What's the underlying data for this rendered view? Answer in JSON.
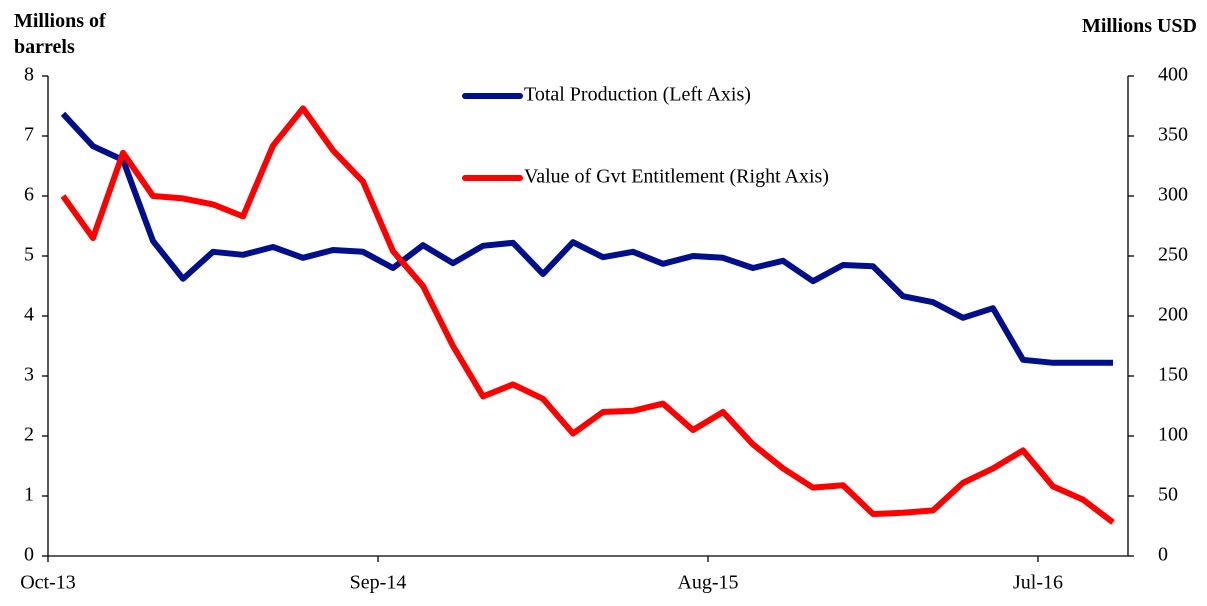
{
  "chart_data": {
    "type": "line",
    "y_label": "Millions of barrels",
    "y2_label": "Millions USD",
    "categories": [
      "Oct-13",
      null,
      null,
      null,
      null,
      null,
      null,
      null,
      null,
      null,
      null,
      "Sep-14",
      null,
      null,
      null,
      null,
      null,
      null,
      null,
      null,
      null,
      null,
      "Aug-15",
      null,
      null,
      null,
      null,
      null,
      null,
      null,
      null,
      null,
      null,
      "Jul-16",
      null,
      null
    ],
    "series": [
      {
        "name": "Total Production (Left Axis)",
        "color": "#000f8c",
        "axis": "y",
        "values": [
          7.37,
          6.83,
          6.6,
          5.25,
          4.62,
          5.07,
          5.02,
          5.15,
          4.97,
          5.1,
          5.07,
          4.8,
          5.18,
          4.88,
          5.17,
          5.22,
          4.7,
          5.23,
          4.98,
          5.07,
          4.87,
          5.0,
          4.97,
          4.8,
          4.92,
          4.58,
          4.85,
          4.83,
          4.33,
          4.23,
          3.97,
          4.13,
          3.27,
          3.22,
          3.22,
          3.22
        ]
      },
      {
        "name": "Value of Gvt Entitlement (Right Axis)",
        "color": "#ff0000",
        "axis": "y2",
        "values": [
          300,
          265,
          336,
          300,
          298,
          293,
          283,
          342,
          373,
          338,
          312,
          254,
          225,
          175,
          133,
          143,
          131,
          102,
          120,
          121,
          127,
          105,
          120,
          93,
          73,
          57,
          59,
          35,
          36,
          38,
          61,
          73,
          88,
          58,
          47,
          28
        ]
      }
    ],
    "ylim": [
      0,
      8
    ],
    "yticks": [
      0,
      1,
      2,
      3,
      4,
      5,
      6,
      7,
      8
    ],
    "y2lim": [
      0,
      400
    ],
    "y2ticks": [
      0,
      50,
      100,
      150,
      200,
      250,
      300,
      350,
      400
    ],
    "grid": false
  }
}
